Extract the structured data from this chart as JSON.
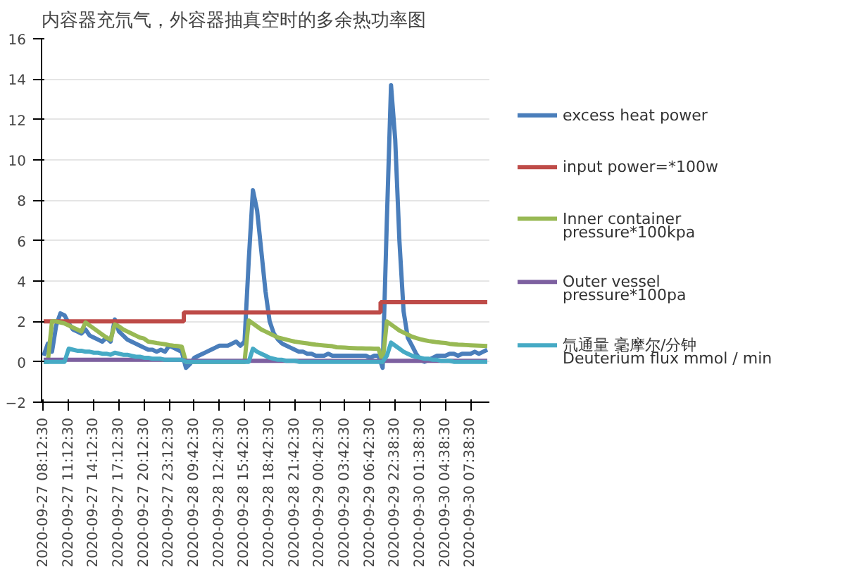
{
  "chart_data": {
    "type": "line",
    "title": "内容器充氘气，外容器抽真空时的多余热功率图",
    "categories": [
      "2020-09-27 08:12:30",
      null,
      null,
      null,
      null,
      null,
      "2020-09-27 11:12:30",
      null,
      null,
      null,
      null,
      null,
      "2020-09-27 14:12:30",
      null,
      null,
      null,
      null,
      null,
      "2020-09-27 17:12:30",
      null,
      null,
      null,
      null,
      null,
      "2020-09-27 20:12:30",
      null,
      null,
      null,
      null,
      null,
      "2020-09-27 23:12:30",
      null,
      null,
      null,
      null,
      null,
      "2020-09-28 09:42:30",
      null,
      null,
      null,
      null,
      null,
      "2020-09-28 12:42:30",
      null,
      null,
      null,
      null,
      null,
      "2020-09-28 15:42:30",
      null,
      null,
      null,
      null,
      null,
      "2020-09-28 18:42:30",
      null,
      null,
      null,
      null,
      null,
      "2020-09-28 21:42:30",
      null,
      null,
      null,
      null,
      null,
      "2020-09-29 00:42:30",
      null,
      null,
      null,
      null,
      null,
      "2020-09-29 03:42:30",
      null,
      null,
      null,
      null,
      null,
      "2020-09-29 06:42:30",
      null,
      null,
      null,
      null,
      null,
      "2020-09-29 22:38:30",
      null,
      null,
      null,
      null,
      null,
      "2020-09-30 01:38:30",
      null,
      null,
      null,
      null,
      null,
      "2020-09-30 04:38:30",
      null,
      null,
      null,
      null,
      null,
      "2020-09-30 07:38:30",
      null,
      null,
      null,
      null
    ],
    "series": [
      {
        "name": "excess heat power",
        "color": "#4a7ebb",
        "values": [
          0.3,
          0.9,
          0.5,
          1.8,
          2.4,
          2.3,
          1.9,
          1.6,
          1.5,
          1.4,
          1.6,
          1.3,
          1.2,
          1.1,
          1.0,
          1.2,
          1.0,
          2.1,
          1.5,
          1.3,
          1.1,
          1.0,
          0.9,
          0.8,
          0.7,
          0.6,
          0.6,
          0.5,
          0.6,
          0.5,
          0.8,
          0.7,
          0.6,
          0.5,
          -0.3,
          -0.1,
          0.2,
          0.3,
          0.4,
          0.5,
          0.6,
          0.7,
          0.8,
          0.8,
          0.8,
          0.9,
          1.0,
          0.8,
          1.0,
          5.0,
          8.5,
          7.5,
          5.5,
          3.5,
          2.0,
          1.4,
          1.1,
          0.9,
          0.8,
          0.7,
          0.6,
          0.5,
          0.5,
          0.4,
          0.4,
          0.3,
          0.3,
          0.3,
          0.4,
          0.3,
          0.3,
          0.3,
          0.3,
          0.3,
          0.3,
          0.3,
          0.3,
          0.3,
          0.2,
          0.3,
          0.3,
          -0.3,
          7.0,
          13.7,
          11.0,
          6.0,
          2.5,
          1.2,
          0.8,
          0.4,
          0.1,
          0.0,
          0.1,
          0.2,
          0.3,
          0.3,
          0.3,
          0.4,
          0.4,
          0.3,
          0.4,
          0.4,
          0.4,
          0.5,
          0.4,
          0.5,
          0.6
        ]
      },
      {
        "name": "input power=*100w",
        "color": "#be4b48",
        "type": "step",
        "values": [
          2.0,
          2.0,
          2.0,
          2.0,
          2.0,
          2.0,
          2.0,
          2.0,
          2.0,
          2.0,
          2.0,
          2.0,
          2.0,
          2.0,
          2.0,
          2.0,
          2.0,
          2.0,
          2.0,
          2.0,
          2.0,
          2.0,
          2.0,
          2.0,
          2.0,
          2.0,
          2.0,
          2.0,
          2.0,
          2.0,
          2.0,
          2.0,
          2.0,
          2.0,
          2.45,
          2.45,
          2.45,
          2.45,
          2.45,
          2.45,
          2.45,
          2.45,
          2.45,
          2.45,
          2.45,
          2.45,
          2.45,
          2.45,
          2.45,
          2.45,
          2.45,
          2.45,
          2.45,
          2.45,
          2.45,
          2.45,
          2.45,
          2.45,
          2.45,
          2.45,
          2.45,
          2.45,
          2.45,
          2.45,
          2.45,
          2.45,
          2.45,
          2.45,
          2.45,
          2.45,
          2.45,
          2.45,
          2.45,
          2.45,
          2.45,
          2.45,
          2.45,
          2.45,
          2.45,
          2.45,
          2.45,
          2.95,
          2.95,
          2.95,
          2.95,
          2.95,
          2.95,
          2.95,
          2.95,
          2.95,
          2.95,
          2.95,
          2.95,
          2.95,
          2.95,
          2.95,
          2.95,
          2.95,
          2.95,
          2.95,
          2.95,
          2.95,
          2.95,
          2.95,
          2.95,
          2.95,
          2.95
        ]
      },
      {
        "name": "Inner container\npressure*100kpa",
        "color": "#98b954",
        "values": [
          0,
          0,
          2.0,
          2.0,
          1.95,
          1.9,
          1.8,
          1.7,
          1.6,
          1.5,
          1.95,
          1.8,
          1.65,
          1.5,
          1.35,
          1.2,
          1.1,
          1.85,
          1.75,
          1.6,
          1.5,
          1.4,
          1.3,
          1.2,
          1.15,
          1.0,
          0.97,
          0.93,
          0.9,
          0.87,
          0.83,
          0.8,
          0.78,
          0.75,
          0,
          0,
          0,
          0,
          0,
          0,
          0,
          0,
          0,
          0,
          0,
          0,
          0,
          0,
          0,
          2.05,
          1.9,
          1.75,
          1.6,
          1.5,
          1.4,
          1.3,
          1.2,
          1.15,
          1.1,
          1.05,
          1.0,
          0.97,
          0.94,
          0.91,
          0.88,
          0.85,
          0.83,
          0.81,
          0.79,
          0.77,
          0.72,
          0.71,
          0.7,
          0.69,
          0.68,
          0.67,
          0.67,
          0.66,
          0.66,
          0.65,
          0.65,
          0,
          2.0,
          1.85,
          1.7,
          1.55,
          1.45,
          1.35,
          1.25,
          1.18,
          1.12,
          1.07,
          1.03,
          1.0,
          0.97,
          0.95,
          0.93,
          0.89,
          0.87,
          0.85,
          0.84,
          0.83,
          0.82,
          0.81,
          0.8,
          0.79,
          0.78
        ]
      },
      {
        "name": "Outer vessel\npressure*100pa",
        "color": "#7d60a0",
        "values": [
          0.1,
          0.1,
          0.1,
          0.1,
          0.1,
          0.1,
          0.1,
          0.1,
          0.1,
          0.1,
          0.1,
          0.1,
          0.1,
          0.1,
          0.1,
          0.1,
          0.1,
          0.1,
          0.1,
          0.1,
          0.1,
          0.1,
          0.1,
          0.1,
          0.1,
          0.1,
          0.1,
          0.1,
          0.1,
          0.1,
          0.1,
          0.1,
          0.1,
          0.1,
          0.05,
          0.05,
          0.05,
          0.05,
          0.05,
          0.05,
          0.05,
          0.05,
          0.05,
          0.05,
          0.05,
          0.05,
          0.05,
          0.05,
          0.05,
          0.05,
          0.05,
          0.05,
          0.05,
          0.05,
          0.05,
          0.05,
          0.05,
          0.05,
          0.05,
          0.05,
          0.05,
          0.05,
          0.05,
          0.05,
          0.05,
          0.05,
          0.05,
          0.05,
          0.05,
          0.05,
          0.05,
          0.05,
          0.05,
          0.05,
          0.05,
          0.05,
          0.05,
          0.05,
          0.05,
          0.05,
          0.05,
          0.05,
          0.05,
          0.05,
          0.05,
          0.05,
          0.05,
          0.05,
          0.05,
          0.05,
          0.05,
          0.05,
          0.05,
          0.05,
          0.05,
          0.05,
          0.05,
          0.05,
          0.05,
          0.05,
          0.05,
          0.05,
          0.05,
          0.05,
          0.05,
          0.05,
          0.05
        ]
      },
      {
        "name": "氘通量 毫摩尔/分钟\nDeuterium flux mmol / min",
        "color": "#46aac5",
        "values": [
          0,
          0,
          0,
          0,
          0,
          0,
          0.65,
          0.6,
          0.55,
          0.55,
          0.5,
          0.5,
          0.45,
          0.45,
          0.4,
          0.4,
          0.35,
          0.45,
          0.4,
          0.35,
          0.35,
          0.3,
          0.25,
          0.25,
          0.2,
          0.2,
          0.15,
          0.15,
          0.15,
          0.1,
          0.1,
          0.1,
          0.1,
          0.1,
          0,
          0,
          0,
          0,
          0,
          0,
          0,
          0,
          0,
          0,
          0,
          0,
          0,
          0,
          0,
          0,
          0.65,
          0.5,
          0.4,
          0.3,
          0.2,
          0.15,
          0.1,
          0.1,
          0.05,
          0.05,
          0.05,
          0,
          0,
          0,
          0,
          0,
          0,
          0,
          0,
          0,
          0,
          0,
          0,
          0,
          0,
          0,
          0,
          0,
          0,
          0,
          0,
          0,
          0.3,
          0.95,
          0.8,
          0.65,
          0.5,
          0.4,
          0.3,
          0.25,
          0.2,
          0.15,
          0.15,
          0.1,
          0.1,
          0.05,
          0.05,
          0.05,
          0,
          0,
          0,
          0,
          0,
          0,
          0,
          0,
          0
        ]
      }
    ],
    "ylim": [
      -2,
      16
    ],
    "yticks": [
      -2,
      0,
      2,
      4,
      6,
      8,
      10,
      12,
      14,
      16
    ],
    "grid": "y",
    "legend": "right",
    "marker": "none",
    "line_style": "solid"
  }
}
